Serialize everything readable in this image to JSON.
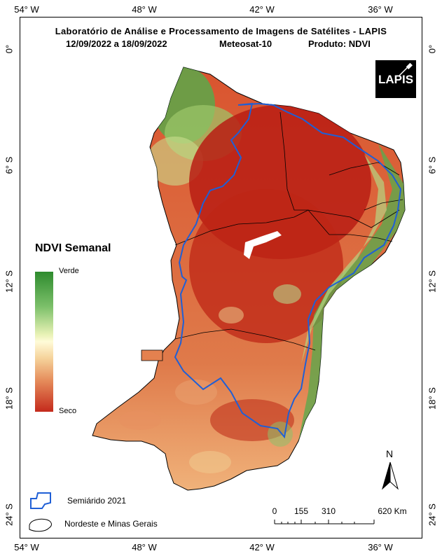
{
  "header": {
    "title": "Laboratório de Análise e Processamento de Imagens de Satélites - LAPIS",
    "date_range": "12/09/2022  a  18/09/2022",
    "satellite": "Meteosat-10",
    "product": "Produto: NDVI"
  },
  "logo": {
    "text": "LAPIS",
    "icon": "satellite-logo"
  },
  "axes": {
    "longitude_ticks": [
      "54° W",
      "48° W",
      "42° W",
      "36° W"
    ],
    "latitude_ticks": [
      "0°",
      "6° S",
      "12° S",
      "18° S",
      "24° S"
    ]
  },
  "legend": {
    "title": "NDVI Semanal",
    "high_label": "Verde",
    "low_label": "Seco",
    "colors": {
      "high": "#2e8b2e",
      "mid": "#fffbd8",
      "low": "#c42a1c"
    },
    "boundary_items": [
      {
        "label": "Semiárido 2021",
        "color": "#1f5fd6"
      },
      {
        "label": "Nordeste e Minas Gerais",
        "color": "#000000"
      }
    ]
  },
  "scale_bar": {
    "labels": [
      "0",
      "155",
      "310",
      "620 Km"
    ]
  },
  "north_arrow": {
    "label": "N"
  }
}
